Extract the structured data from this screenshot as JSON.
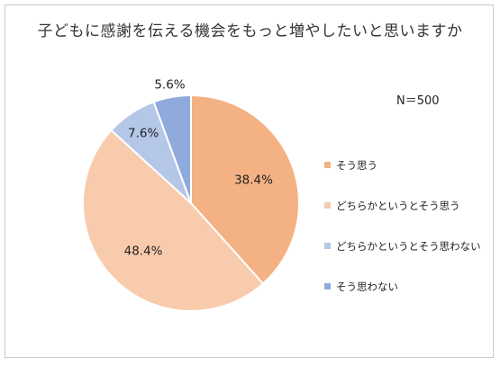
{
  "chart_data": {
    "type": "pie",
    "title": "子どもに感謝を伝える機会をもっと増やしたいと思いますか",
    "annotation": "N＝500",
    "slices": [
      {
        "name": "そう思う",
        "value": 38.4,
        "label": "38.4%",
        "color": "#F4B183"
      },
      {
        "name": "どちらかというとそう思う",
        "value": 48.4,
        "label": "48.4%",
        "color": "#F8CBAD"
      },
      {
        "name": "どちらかというとそう思わない",
        "value": 7.6,
        "label": "7.6%",
        "color": "#B4C7E7"
      },
      {
        "name": "そう思わない",
        "value": 5.6,
        "label": "5.6%",
        "color": "#8FAADC"
      }
    ],
    "start_angle": "12 o'clock",
    "direction": "clockwise",
    "legend_position": "right"
  }
}
